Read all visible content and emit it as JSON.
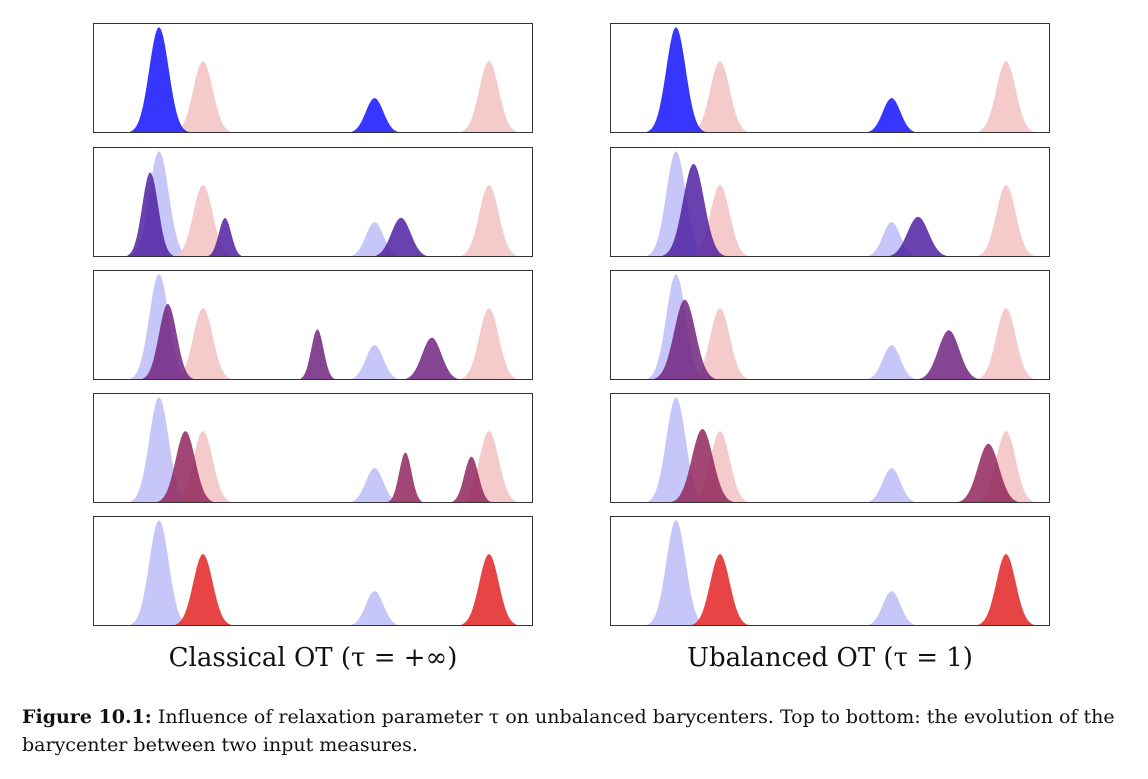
{
  "figure": {
    "label": "Figure 10.1:",
    "caption_text": "Influence of relaxation parameter τ on unbalanced barycenters. Top to bottom: the evolution of the barycenter between two input measures."
  },
  "columns": [
    {
      "caption": "Classical OT (τ = +∞)",
      "rows": [
        {
          "step": 0,
          "peaks": [
            [
              0.15,
              1.0,
              0.022
            ],
            [
              0.64,
              0.33,
              0.02
            ]
          ]
        },
        {
          "step": 1,
          "peaks": [
            [
              0.13,
              0.8,
              0.018
            ],
            [
              0.3,
              0.37,
              0.014
            ],
            [
              0.7,
              0.37,
              0.022
            ]
          ]
        },
        {
          "step": 2,
          "peaks": [
            [
              0.17,
              0.72,
              0.02
            ],
            [
              0.51,
              0.48,
              0.014
            ],
            [
              0.77,
              0.4,
              0.022
            ]
          ]
        },
        {
          "step": 3,
          "peaks": [
            [
              0.21,
              0.68,
              0.022
            ],
            [
              0.71,
              0.48,
              0.014
            ],
            [
              0.86,
              0.44,
              0.016
            ]
          ]
        },
        {
          "step": 4,
          "peaks": [
            [
              0.25,
              0.68,
              0.022
            ],
            [
              0.9,
              0.68,
              0.022
            ]
          ]
        }
      ]
    },
    {
      "caption": "Ubalanced OT (τ = 1)",
      "rows": [
        {
          "step": 0,
          "peaks": [
            [
              0.15,
              1.0,
              0.022
            ],
            [
              0.64,
              0.33,
              0.02
            ]
          ]
        },
        {
          "step": 1,
          "peaks": [
            [
              0.19,
              0.88,
              0.024
            ],
            [
              0.7,
              0.38,
              0.024
            ]
          ]
        },
        {
          "step": 2,
          "peaks": [
            [
              0.17,
              0.76,
              0.024
            ],
            [
              0.77,
              0.47,
              0.024
            ]
          ]
        },
        {
          "step": 3,
          "peaks": [
            [
              0.21,
              0.7,
              0.024
            ],
            [
              0.86,
              0.56,
              0.024
            ]
          ]
        },
        {
          "step": 4,
          "peaks": [
            [
              0.25,
              0.68,
              0.022
            ],
            [
              0.9,
              0.68,
              0.022
            ]
          ]
        }
      ]
    }
  ],
  "input_measures": {
    "blue": {
      "peaks": [
        [
          0.15,
          1.0,
          0.022
        ],
        [
          0.64,
          0.33,
          0.02
        ]
      ]
    },
    "red": {
      "peaks": [
        [
          0.25,
          0.68,
          0.022
        ],
        [
          0.9,
          0.68,
          0.022
        ]
      ]
    }
  },
  "colors": {
    "blue": "#2b2bff",
    "red": "#e63b3b",
    "blue_light": "#c0c0f8",
    "red_light": "#f3c4c4",
    "frame": "#333333"
  }
}
